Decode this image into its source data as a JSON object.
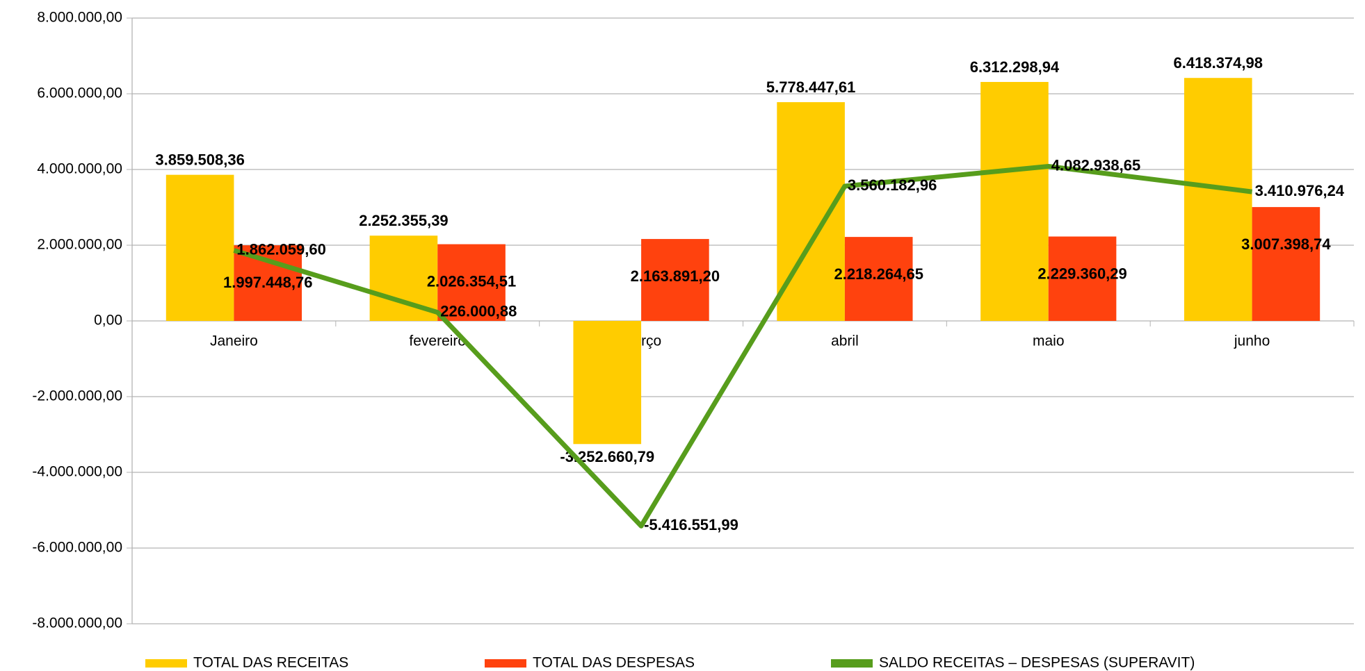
{
  "chart_data": {
    "type": "bar_line",
    "categories": [
      "Janeiro",
      "fevereiro",
      "março",
      "abril",
      "maio",
      "junho"
    ],
    "series": [
      {
        "name": "TOTAL DAS RECEITAS",
        "color": "#ffcc00",
        "type": "bar",
        "values": [
          3859508.36,
          2252355.39,
          -3252660.79,
          5778447.61,
          6312298.94,
          6418374.98
        ],
        "value_labels": [
          "3.859.508,36",
          "2.252.355,39",
          "-3.252.660,79",
          "5.778.447,61",
          "6.312.298,94",
          "6.418.374,98"
        ]
      },
      {
        "name": "TOTAL DAS DESPESAS",
        "color": "#ff420e",
        "type": "bar",
        "values": [
          1997448.76,
          2026354.51,
          2163891.2,
          2218264.65,
          2229360.29,
          3007398.74
        ],
        "value_labels": [
          "1.997.448,76",
          "2.026.354,51",
          "2.163.891,20",
          "2.218.264,65",
          "2.229.360,29",
          "3.007.398,74"
        ]
      },
      {
        "name": "SALDO RECEITAS – DESPESAS (SUPERAVIT)",
        "color": "#579d1c",
        "type": "line",
        "values": [
          1862059.6,
          226000.88,
          -5416551.99,
          3560182.96,
          4082938.65,
          3410976.24
        ],
        "value_labels": [
          "1.862.059,60",
          "226.000,88",
          "-5.416.551,99",
          "3.560.182,96",
          "4.082.938,65",
          "3.410.976,24"
        ]
      }
    ],
    "ylim": [
      -8000000,
      8000000
    ],
    "yticks": [
      {
        "value": -8000000,
        "label": "-8.000.000,00"
      },
      {
        "value": -6000000,
        "label": "-6.000.000,00"
      },
      {
        "value": -4000000,
        "label": "-4.000.000,00"
      },
      {
        "value": -2000000,
        "label": "-2.000.000,00"
      },
      {
        "value": 0,
        "label": "0,00"
      },
      {
        "value": 2000000,
        "label": "2.000.000,00"
      },
      {
        "value": 4000000,
        "label": "4.000.000,00"
      },
      {
        "value": 6000000,
        "label": "6.000.000,00"
      },
      {
        "value": 8000000,
        "label": "8.000.000,00"
      }
    ],
    "grid": true,
    "legend": "bottom"
  }
}
